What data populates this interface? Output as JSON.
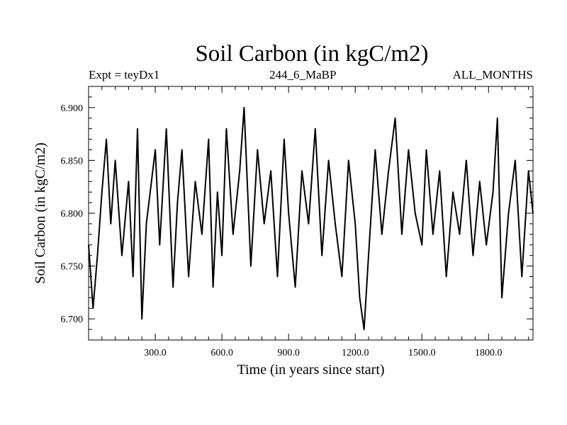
{
  "header": {
    "title": "Soil Carbon (in kgC/m2)",
    "expt": "Expt = teyDx1",
    "run": "244_6_MaBP",
    "period": "ALL_MONTHS"
  },
  "chart_data": {
    "type": "line",
    "title": "Soil Carbon (in kgC/m2)",
    "xlabel": "Time (in years since start)",
    "ylabel": "Soil Carbon (in kgC/m2)",
    "xlim": [
      0,
      2000
    ],
    "ylim": [
      6.68,
      6.92
    ],
    "xticks": [
      300,
      600,
      900,
      1200,
      1500,
      1800
    ],
    "xtick_labels": [
      "300.0",
      "600.0",
      "900.0",
      "1200.0",
      "1500.0",
      "1800.0"
    ],
    "yticks": [
      6.7,
      6.75,
      6.8,
      6.85,
      6.9
    ],
    "ytick_labels": [
      "6.700",
      "6.750",
      "6.800",
      "6.850",
      "6.900"
    ],
    "grid": false,
    "series": [
      {
        "name": "Soil Carbon",
        "color": "#000000",
        "x": [
          0,
          20,
          40,
          60,
          80,
          100,
          120,
          150,
          180,
          200,
          220,
          240,
          260,
          300,
          320,
          350,
          380,
          400,
          420,
          450,
          480,
          510,
          540,
          560,
          580,
          600,
          620,
          650,
          680,
          700,
          730,
          760,
          790,
          820,
          850,
          880,
          900,
          930,
          960,
          990,
          1020,
          1050,
          1080,
          1110,
          1140,
          1170,
          1200,
          1220,
          1240,
          1260,
          1290,
          1320,
          1350,
          1380,
          1410,
          1440,
          1470,
          1500,
          1520,
          1550,
          1580,
          1610,
          1640,
          1670,
          1700,
          1730,
          1760,
          1790,
          1820,
          1840,
          1860,
          1890,
          1920,
          1950,
          1980,
          2000
        ],
        "values": [
          6.77,
          6.71,
          6.76,
          6.82,
          6.87,
          6.79,
          6.85,
          6.76,
          6.83,
          6.74,
          6.88,
          6.7,
          6.79,
          6.86,
          6.77,
          6.88,
          6.73,
          6.81,
          6.86,
          6.74,
          6.83,
          6.78,
          6.87,
          6.73,
          6.82,
          6.76,
          6.88,
          6.78,
          6.84,
          6.9,
          6.75,
          6.86,
          6.79,
          6.84,
          6.74,
          6.87,
          6.8,
          6.73,
          6.84,
          6.79,
          6.88,
          6.76,
          6.85,
          6.79,
          6.74,
          6.85,
          6.79,
          6.72,
          6.69,
          6.76,
          6.86,
          6.78,
          6.84,
          6.89,
          6.78,
          6.86,
          6.8,
          6.77,
          6.86,
          6.78,
          6.84,
          6.74,
          6.82,
          6.78,
          6.85,
          6.76,
          6.83,
          6.77,
          6.82,
          6.89,
          6.72,
          6.8,
          6.85,
          6.74,
          6.84,
          6.8
        ]
      }
    ]
  }
}
